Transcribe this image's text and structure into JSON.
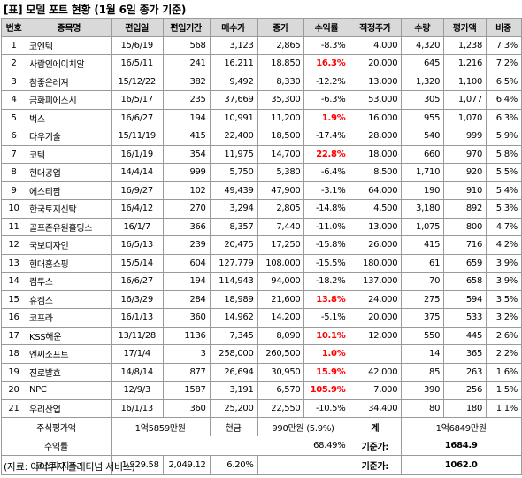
{
  "title": "[표] 모델 포트 현황 (1월 6일 종가 기준)",
  "colors": {
    "header_bg": "#d9d9d9",
    "border": "#9a9a9a",
    "highlight_red": "#ff0000"
  },
  "columns": [
    "번호",
    "종목명",
    "편입일",
    "편입기간",
    "매수가",
    "종가",
    "수익률",
    "적정주가",
    "수량",
    "평가액",
    "비중"
  ],
  "rows": [
    {
      "no": "1",
      "name": "코엔텍",
      "date": "15/6/19",
      "period": "568",
      "buy": "3,123",
      "close": "2,865",
      "ret": "-8.3%",
      "fair": "4,000",
      "qty": "4,320",
      "val": "1,238",
      "weight": "7.3%",
      "hl": false
    },
    {
      "no": "2",
      "name": "사람인에이치알",
      "date": "16/5/11",
      "period": "241",
      "buy": "16,211",
      "close": "18,850",
      "ret": "16.3%",
      "fair": "20,000",
      "qty": "645",
      "val": "1,216",
      "weight": "7.2%",
      "hl": true
    },
    {
      "no": "3",
      "name": "참좋은레져",
      "date": "15/12/22",
      "period": "382",
      "buy": "9,492",
      "close": "8,330",
      "ret": "-12.2%",
      "fair": "13,000",
      "qty": "1,320",
      "val": "1,100",
      "weight": "6.5%",
      "hl": false
    },
    {
      "no": "4",
      "name": "금화피에스시",
      "date": "16/5/17",
      "period": "235",
      "buy": "37,669",
      "close": "35,300",
      "ret": "-6.3%",
      "fair": "53,000",
      "qty": "305",
      "val": "1,077",
      "weight": "6.4%",
      "hl": false
    },
    {
      "no": "5",
      "name": "벅스",
      "date": "16/6/27",
      "period": "194",
      "buy": "10,991",
      "close": "11,200",
      "ret": "1.9%",
      "fair": "16,000",
      "qty": "955",
      "val": "1,070",
      "weight": "6.3%",
      "hl": true
    },
    {
      "no": "6",
      "name": "다우기술",
      "date": "15/11/19",
      "period": "415",
      "buy": "22,400",
      "close": "18,500",
      "ret": "-17.4%",
      "fair": "28,000",
      "qty": "540",
      "val": "999",
      "weight": "5.9%",
      "hl": false
    },
    {
      "no": "7",
      "name": "코텍",
      "date": "16/1/19",
      "period": "354",
      "buy": "11,975",
      "close": "14,700",
      "ret": "22.8%",
      "fair": "18,000",
      "qty": "660",
      "val": "970",
      "weight": "5.8%",
      "hl": true
    },
    {
      "no": "8",
      "name": "현대공업",
      "date": "14/4/14",
      "period": "999",
      "buy": "5,750",
      "close": "5,380",
      "ret": "-6.4%",
      "fair": "8,500",
      "qty": "1,710",
      "val": "920",
      "weight": "5.5%",
      "hl": false
    },
    {
      "no": "9",
      "name": "에스티팜",
      "date": "16/9/27",
      "period": "102",
      "buy": "49,439",
      "close": "47,900",
      "ret": "-3.1%",
      "fair": "64,000",
      "qty": "190",
      "val": "910",
      "weight": "5.4%",
      "hl": false
    },
    {
      "no": "10",
      "name": "한국토지신탁",
      "date": "16/4/12",
      "period": "270",
      "buy": "3,294",
      "close": "2,805",
      "ret": "-14.8%",
      "fair": "4,500",
      "qty": "3,180",
      "val": "892",
      "weight": "5.3%",
      "hl": false
    },
    {
      "no": "11",
      "name": "골프존유원홀딩스",
      "date": "16/1/7",
      "period": "366",
      "buy": "8,357",
      "close": "7,440",
      "ret": "-11.0%",
      "fair": "13,000",
      "qty": "1,075",
      "val": "800",
      "weight": "4.7%",
      "hl": false
    },
    {
      "no": "12",
      "name": "국보디자인",
      "date": "16/5/13",
      "period": "239",
      "buy": "20,475",
      "close": "17,250",
      "ret": "-15.8%",
      "fair": "26,000",
      "qty": "415",
      "val": "716",
      "weight": "4.2%",
      "hl": false
    },
    {
      "no": "13",
      "name": "현대홈쇼핑",
      "date": "15/5/14",
      "period": "604",
      "buy": "127,779",
      "close": "108,000",
      "ret": "-15.5%",
      "fair": "180,000",
      "qty": "61",
      "val": "659",
      "weight": "3.9%",
      "hl": false
    },
    {
      "no": "14",
      "name": "컴투스",
      "date": "16/6/27",
      "period": "194",
      "buy": "114,943",
      "close": "94,000",
      "ret": "-18.2%",
      "fair": "137,000",
      "qty": "70",
      "val": "658",
      "weight": "3.9%",
      "hl": false
    },
    {
      "no": "15",
      "name": "휴켐스",
      "date": "16/3/29",
      "period": "284",
      "buy": "18,989",
      "close": "21,600",
      "ret": "13.8%",
      "fair": "24,000",
      "qty": "275",
      "val": "594",
      "weight": "3.5%",
      "hl": true
    },
    {
      "no": "16",
      "name": "코프라",
      "date": "16/1/13",
      "period": "360",
      "buy": "14,962",
      "close": "14,200",
      "ret": "-5.1%",
      "fair": "20,000",
      "qty": "375",
      "val": "533",
      "weight": "3.2%",
      "hl": false
    },
    {
      "no": "17",
      "name": "KSS해운",
      "date": "13/11/28",
      "period": "1136",
      "buy": "7,345",
      "close": "8,090",
      "ret": "10.1%",
      "fair": "12,000",
      "qty": "550",
      "val": "445",
      "weight": "2.6%",
      "hl": true
    },
    {
      "no": "18",
      "name": "엔씨소프트",
      "date": "17/1/4",
      "period": "3",
      "buy": "258,000",
      "close": "260,500",
      "ret": "1.0%",
      "fair": "",
      "qty": "14",
      "val": "365",
      "weight": "2.2%",
      "hl": true
    },
    {
      "no": "19",
      "name": "진로발효",
      "date": "14/8/14",
      "period": "877",
      "buy": "26,694",
      "close": "30,950",
      "ret": "15.9%",
      "fair": "42,000",
      "qty": "85",
      "val": "263",
      "weight": "1.6%",
      "hl": true
    },
    {
      "no": "20",
      "name": "NPC",
      "date": "12/9/3",
      "period": "1587",
      "buy": "3,191",
      "close": "6,570",
      "ret": "105.9%",
      "fair": "7,000",
      "qty": "390",
      "val": "256",
      "weight": "1.5%",
      "hl": true
    },
    {
      "no": "21",
      "name": "우리산업",
      "date": "16/1/13",
      "period": "360",
      "buy": "25,200",
      "close": "22,550",
      "ret": "-10.5%",
      "fair": "34,400",
      "qty": "80",
      "val": "180",
      "weight": "1.1%",
      "hl": false
    }
  ],
  "summary": {
    "stock_eval_label": "주식평가액",
    "stock_eval_value": "1억5859만원",
    "cash_label": "현금",
    "cash_value": "990만원 (5.9%)",
    "total_label": "계",
    "total_value": "1억6849만원",
    "return_label": "수익률",
    "return_value": "68.49%",
    "return_base_label": "기준가:",
    "return_base_value": "1684.9",
    "kosdaq_label": "코스피 지수",
    "kosdaq_start": "1,929.58",
    "kosdaq_now": "2,049.12",
    "kosdaq_change": "6.20%",
    "kosdaq_base_label": "기준가:",
    "kosdaq_base_value": "1062.0"
  },
  "source": "(자료: 아이투자 플래티넘 서비스)"
}
